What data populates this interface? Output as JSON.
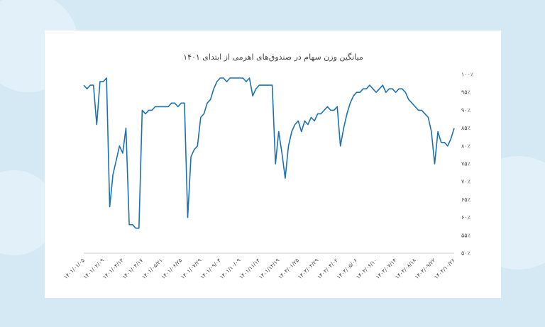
{
  "chart_data": {
    "type": "line",
    "title": "میانگین وزن سهام در صندوق‌های اهرمی از ابتدای ۱۴۰۱",
    "categories": [
      "۱۴۰۱/۰۱/۰۵",
      null,
      null,
      null,
      null,
      null,
      "۱۴۰۱/۰۲/۰۹",
      null,
      null,
      null,
      null,
      null,
      "۱۴۰۱/۰۳/۱۳",
      null,
      null,
      null,
      null,
      null,
      "۱۴۰۱/۰۴/۱۷",
      null,
      null,
      null,
      null,
      null,
      "۱۴۰۱/۰۵/۲۱",
      null,
      null,
      null,
      null,
      null,
      "۱۴۰۱/۰۶/۲۵",
      null,
      null,
      null,
      null,
      null,
      "۱۴۰۱/۰۷/۲۹",
      null,
      null,
      null,
      null,
      null,
      "۱۴۰۱/۰۹/۰۴",
      null,
      null,
      null,
      null,
      null,
      "۱۴۰۱/۱۰/۰۹",
      null,
      null,
      null,
      null,
      null,
      "۱۴۰۱/۱۱/۱۴",
      null,
      null,
      null,
      null,
      null,
      "۱۴۰۱/۱۲/۱۹",
      null,
      null,
      null,
      null,
      null,
      "۱۴۰۲/۰۱/۲۵",
      null,
      null,
      null,
      null,
      null,
      "۱۴۰۲/۰۲/۲۹",
      null,
      null,
      null,
      null,
      null,
      "۱۴۰۲/۰۴/۰۲",
      null,
      null,
      null,
      null,
      null,
      "۱۴۰۲/۰۵/۰۶",
      null,
      null,
      null,
      null,
      null,
      "۱۴۰۲/۰۶/۱۰",
      null,
      null,
      null,
      null,
      null,
      "۱۴۰۲/۰۷/۱۴",
      null,
      null,
      null,
      null,
      null,
      "۱۴۰۲/۰۸/۱۸",
      null,
      null,
      null,
      null,
      null,
      "۱۴۰۲/۰۹/۲۲",
      null,
      null,
      null,
      null,
      null,
      "۱۴۰۲/۱۰/۲۶"
    ],
    "values": [
      97,
      96,
      97,
      97,
      86,
      98,
      98,
      99,
      63,
      72,
      76,
      80,
      78,
      85,
      58,
      58,
      57,
      57,
      90,
      89,
      90,
      90,
      91,
      91,
      91,
      91,
      91,
      92,
      92,
      91,
      92,
      92,
      60,
      77,
      79,
      80,
      88,
      89,
      92,
      93,
      96,
      98,
      99,
      99,
      98,
      99,
      99,
      99,
      99,
      99,
      98,
      99,
      94,
      96,
      97,
      97,
      97,
      97,
      97,
      75,
      84,
      78,
      71,
      80,
      84,
      86,
      87,
      84,
      87,
      86,
      88,
      87,
      89,
      89,
      90,
      91,
      90,
      90,
      91,
      80,
      85,
      89,
      92,
      94,
      95,
      95,
      96,
      96,
      97,
      96,
      95,
      96,
      97,
      95,
      96,
      96,
      95,
      96,
      96,
      95,
      93,
      92,
      91,
      90,
      90,
      89,
      88,
      84,
      75,
      84,
      81,
      81,
      80,
      82,
      85
    ],
    "color": "#1b72b3",
    "ylim": [
      50,
      100
    ],
    "yticks": [
      {
        "value": 50,
        "label": "۵۰٪"
      },
      {
        "value": 55,
        "label": "۵۵٪"
      },
      {
        "value": 60,
        "label": "۶۰٪"
      },
      {
        "value": 65,
        "label": "۶۵٪"
      },
      {
        "value": 70,
        "label": "۷۰٪"
      },
      {
        "value": 75,
        "label": "۷۵٪"
      },
      {
        "value": 80,
        "label": "۸۰٪"
      },
      {
        "value": 85,
        "label": "۸۵٪"
      },
      {
        "value": 90,
        "label": "۹۰٪"
      },
      {
        "value": 95,
        "label": "۹۵٪"
      },
      {
        "value": 100,
        "label": "۱۰۰٪"
      }
    ],
    "grid": false
  }
}
